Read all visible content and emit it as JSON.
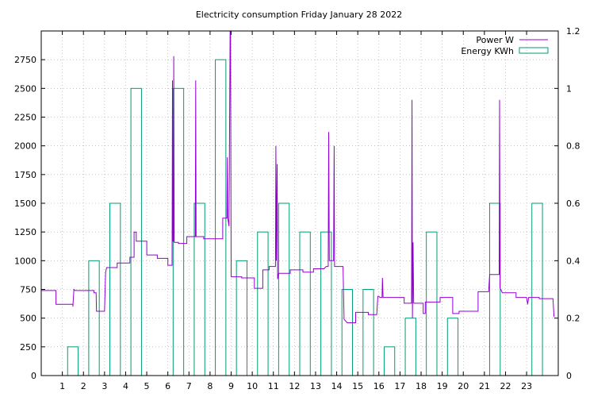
{
  "chart_data": {
    "type": "line",
    "title": "Electricity consumption Friday January 28 2022",
    "legend_position": "top-right",
    "grid": true,
    "x_axis": {
      "range": [
        0,
        24.5
      ],
      "ticks": [
        1,
        2,
        3,
        4,
        5,
        6,
        7,
        8,
        9,
        10,
        11,
        12,
        13,
        14,
        15,
        16,
        17,
        18,
        19,
        20,
        21,
        22,
        23
      ],
      "tick_labels": [
        "1",
        "2",
        "3",
        "4",
        "5",
        "6",
        "7",
        "8",
        "9",
        "10",
        "11",
        "12",
        "13",
        "14",
        "15",
        "16",
        "17",
        "18",
        "19",
        "20",
        "21",
        "22",
        "23"
      ]
    },
    "y_axis_left": {
      "range": [
        0,
        3000
      ],
      "ticks": [
        0,
        250,
        500,
        750,
        1000,
        1250,
        1500,
        1750,
        2000,
        2250,
        2500,
        2750
      ],
      "tick_labels": [
        "0",
        "250",
        "500",
        "750",
        "1000",
        "1250",
        "1500",
        "1750",
        "2000",
        "2250",
        "2500",
        "2750"
      ]
    },
    "y_axis_right": {
      "range": [
        0,
        1.2
      ],
      "ticks": [
        0,
        0.2,
        0.4,
        0.6,
        0.8,
        1,
        1.2
      ],
      "tick_labels": [
        "0",
        "0.2",
        "0.4",
        "0.6",
        "0.8",
        "1",
        "1.2"
      ]
    },
    "series": [
      {
        "name": "Power W",
        "type": "line",
        "axis": "left",
        "color": "#9400d3",
        "points": [
          [
            0,
            740
          ],
          [
            0.7,
            740
          ],
          [
            0.7,
            620
          ],
          [
            1.5,
            620
          ],
          [
            1.5,
            600
          ],
          [
            1.55,
            750
          ],
          [
            1.6,
            740
          ],
          [
            2.5,
            740
          ],
          [
            2.5,
            720
          ],
          [
            2.6,
            720
          ],
          [
            2.62,
            560
          ],
          [
            3.0,
            560
          ],
          [
            3.05,
            900
          ],
          [
            3.1,
            940
          ],
          [
            3.6,
            940
          ],
          [
            3.6,
            980
          ],
          [
            4.2,
            980
          ],
          [
            4.2,
            1030
          ],
          [
            4.4,
            1030
          ],
          [
            4.4,
            1250
          ],
          [
            4.5,
            1250
          ],
          [
            4.5,
            1170
          ],
          [
            5.0,
            1170
          ],
          [
            5.0,
            1050
          ],
          [
            5.5,
            1050
          ],
          [
            5.5,
            1020
          ],
          [
            6.0,
            1020
          ],
          [
            6.0,
            960
          ],
          [
            6.2,
            960
          ],
          [
            6.22,
            2570
          ],
          [
            6.24,
            1170
          ],
          [
            6.27,
            1170
          ],
          [
            6.28,
            2780
          ],
          [
            6.3,
            1160
          ],
          [
            6.5,
            1160
          ],
          [
            6.5,
            1150
          ],
          [
            6.9,
            1150
          ],
          [
            6.9,
            1210
          ],
          [
            7.3,
            1210
          ],
          [
            7.32,
            2570
          ],
          [
            7.34,
            1210
          ],
          [
            7.7,
            1210
          ],
          [
            7.7,
            1190
          ],
          [
            8.6,
            1190
          ],
          [
            8.6,
            1370
          ],
          [
            8.8,
            1370
          ],
          [
            8.82,
            1900
          ],
          [
            8.84,
            1370
          ],
          [
            8.9,
            1300
          ],
          [
            8.95,
            3000
          ],
          [
            8.97,
            3000
          ],
          [
            9.0,
            860
          ],
          [
            9.5,
            860
          ],
          [
            9.5,
            850
          ],
          [
            10.1,
            850
          ],
          [
            10.1,
            760
          ],
          [
            10.5,
            760
          ],
          [
            10.5,
            920
          ],
          [
            10.8,
            920
          ],
          [
            10.8,
            950
          ],
          [
            11.1,
            950
          ],
          [
            11.12,
            2000
          ],
          [
            11.14,
            1000
          ],
          [
            11.18,
            1840
          ],
          [
            11.2,
            840
          ],
          [
            11.25,
            890
          ],
          [
            11.8,
            890
          ],
          [
            11.8,
            920
          ],
          [
            12.4,
            920
          ],
          [
            12.4,
            900
          ],
          [
            12.9,
            900
          ],
          [
            12.9,
            930
          ],
          [
            13.4,
            930
          ],
          [
            13.5,
            950
          ],
          [
            13.6,
            950
          ],
          [
            13.62,
            2120
          ],
          [
            13.65,
            1000
          ],
          [
            13.85,
            1000
          ],
          [
            13.88,
            2000
          ],
          [
            13.9,
            950
          ],
          [
            14.3,
            950
          ],
          [
            14.35,
            490
          ],
          [
            14.5,
            460
          ],
          [
            14.9,
            460
          ],
          [
            14.9,
            550
          ],
          [
            15.5,
            550
          ],
          [
            15.5,
            530
          ],
          [
            15.9,
            530
          ],
          [
            15.95,
            690
          ],
          [
            16.0,
            690
          ],
          [
            16.05,
            680
          ],
          [
            16.15,
            680
          ],
          [
            16.17,
            850
          ],
          [
            16.2,
            680
          ],
          [
            17.2,
            680
          ],
          [
            17.2,
            630
          ],
          [
            17.55,
            630
          ],
          [
            17.57,
            2400
          ],
          [
            17.59,
            500
          ],
          [
            17.62,
            1160
          ],
          [
            17.65,
            630
          ],
          [
            18.1,
            630
          ],
          [
            18.1,
            540
          ],
          [
            18.2,
            540
          ],
          [
            18.2,
            640
          ],
          [
            18.9,
            640
          ],
          [
            18.9,
            680
          ],
          [
            19.5,
            680
          ],
          [
            19.5,
            540
          ],
          [
            19.8,
            540
          ],
          [
            19.8,
            560
          ],
          [
            20.7,
            560
          ],
          [
            20.7,
            730
          ],
          [
            21.2,
            730
          ],
          [
            21.25,
            880
          ],
          [
            21.7,
            880
          ],
          [
            21.72,
            2400
          ],
          [
            21.74,
            760
          ],
          [
            21.8,
            740
          ],
          [
            21.85,
            720
          ],
          [
            22.5,
            720
          ],
          [
            22.5,
            680
          ],
          [
            23.0,
            680
          ],
          [
            23.05,
            620
          ],
          [
            23.1,
            680
          ],
          [
            23.6,
            680
          ],
          [
            23.6,
            670
          ],
          [
            24.25,
            670
          ],
          [
            24.3,
            510
          ]
        ]
      },
      {
        "name": "Energy KWh",
        "type": "bar",
        "axis": "right",
        "color": "#009e73",
        "categories": [
          0,
          1,
          2,
          3,
          4,
          5,
          6,
          7,
          8,
          9,
          10,
          11,
          12,
          13,
          14,
          15,
          16,
          17,
          18,
          19,
          20,
          21,
          22,
          23
        ],
        "values": [
          0,
          0.1,
          0.4,
          0.6,
          1.0,
          0,
          1.0,
          0.6,
          1.1,
          0.4,
          0.5,
          0.6,
          0.5,
          0.5,
          0.3,
          0.3,
          0.1,
          0.2,
          0.5,
          0.2,
          0,
          0.6,
          0,
          0.6
        ]
      }
    ]
  }
}
